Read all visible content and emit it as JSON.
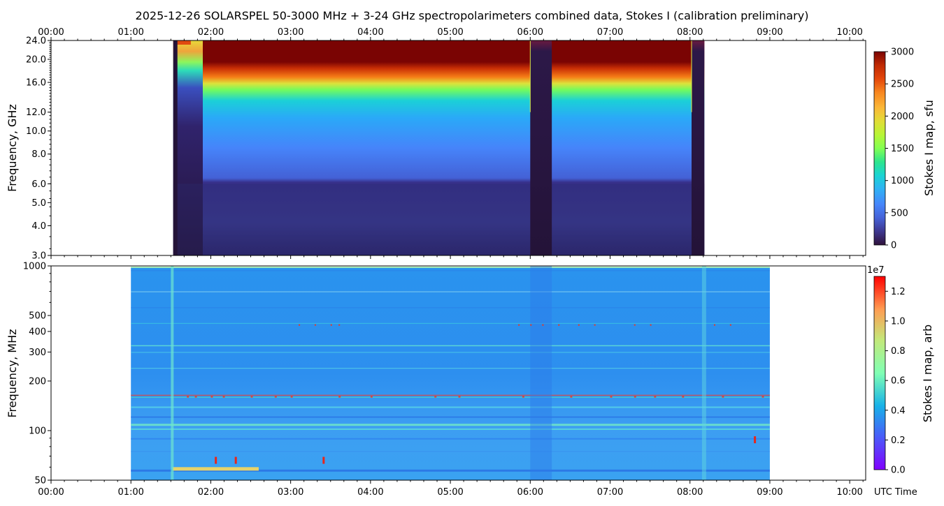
{
  "chart_data": [
    {
      "type": "heatmap",
      "title": "2025-12-26  SOLARSPEL  50-3000 MHz  +  3-24 GHz  spectropolarimeters combined data,  Stokes I  (calibration preliminary)",
      "ylabel": "Frequency, GHz",
      "yscale": "log",
      "ylim": [
        3.0,
        24.0
      ],
      "y_ticks": [
        "3.0",
        "4.0",
        "5.0",
        "6.0",
        "8.0",
        "10.0",
        "12.0",
        "16.0",
        "20.0",
        "24.0"
      ],
      "x_ticks_top": [
        "00:00",
        "01:00",
        "02:00",
        "03:00",
        "04:00",
        "05:00",
        "06:00",
        "07:00",
        "08:00",
        "09:00",
        "10:00"
      ],
      "x_range_hours": [
        0,
        10.2
      ],
      "data_range_hours": [
        1.53,
        8.18
      ],
      "gaps_hours": [
        [
          6.0,
          6.27
        ],
        [
          8.02,
          8.18
        ]
      ],
      "colorbar": {
        "label": "Stokes I map, sfu",
        "min": 0,
        "max": 3000,
        "ticks": [
          "0",
          "500",
          "1000",
          "1500",
          "2000",
          "2500",
          "3000"
        ],
        "colormap": "turbo"
      }
    },
    {
      "type": "heatmap",
      "ylabel": "Frequency, MHz",
      "yscale": "log",
      "ylim": [
        50,
        1000
      ],
      "y_ticks": [
        "50",
        "100",
        "200",
        "300",
        "400",
        "500",
        "1000"
      ],
      "xlabel": "UTC Time",
      "x_ticks": [
        "00:00",
        "01:00",
        "02:00",
        "03:00",
        "04:00",
        "05:00",
        "06:00",
        "07:00",
        "08:00",
        "09:00",
        "10:00"
      ],
      "x_range_hours": [
        0,
        10.2
      ],
      "data_range_hours": [
        1.0,
        9.0
      ],
      "colorbar": {
        "label": "Stokes I map, arb",
        "offset_text": "1e7",
        "min": 0.0,
        "max": 1.3,
        "ticks": [
          "0.0",
          "0.2",
          "0.4",
          "0.6",
          "0.8",
          "1.0",
          "1.2"
        ],
        "colormap": "rainbow"
      }
    }
  ]
}
